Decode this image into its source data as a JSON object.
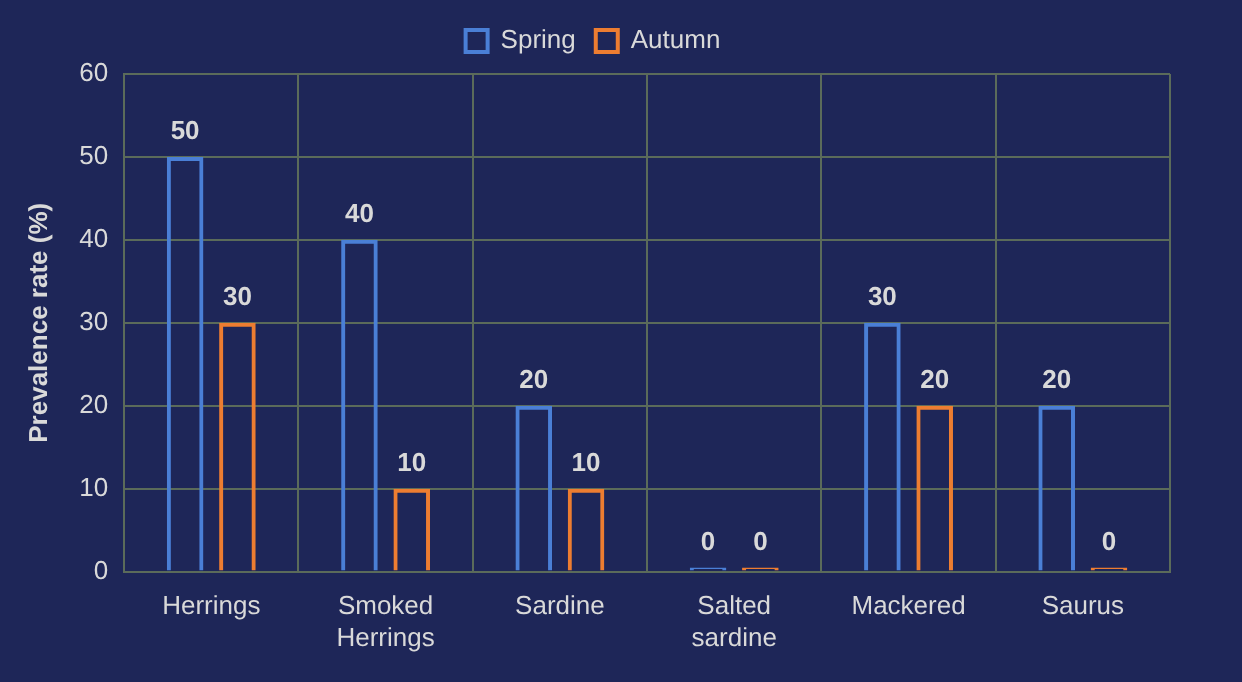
{
  "chart_data": {
    "type": "bar",
    "ylabel": "Prevalence rate (%)",
    "categories": [
      "Herrings",
      "Smoked Herrings",
      "Sardine",
      "Salted sardine",
      "Mackered",
      "Saurus"
    ],
    "series": [
      {
        "name": "Spring",
        "color": "#4a7fd6",
        "values": [
          50,
          40,
          20,
          0,
          30,
          20
        ]
      },
      {
        "name": "Autumn",
        "color": "#ed7d31",
        "values": [
          30,
          10,
          10,
          0,
          20,
          0
        ]
      }
    ],
    "ylim": [
      0,
      60
    ],
    "yticks": [
      0,
      10,
      20,
      30,
      40,
      50,
      60
    ],
    "grid": true,
    "legend": "top",
    "data_labels": true
  }
}
